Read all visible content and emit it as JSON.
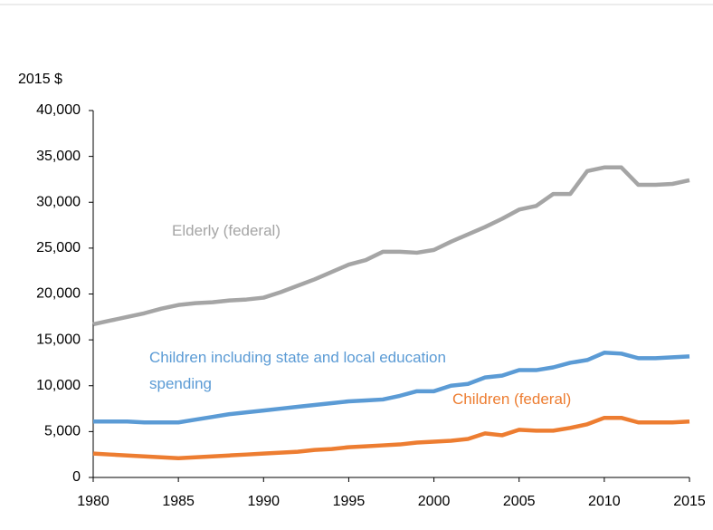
{
  "chart_data": {
    "type": "line",
    "y_label": "2015 $",
    "x": [
      1980,
      1981,
      1982,
      1983,
      1984,
      1985,
      1986,
      1987,
      1988,
      1989,
      1990,
      1991,
      1992,
      1993,
      1994,
      1995,
      1996,
      1997,
      1998,
      1999,
      2000,
      2001,
      2002,
      2003,
      2004,
      2005,
      2006,
      2007,
      2008,
      2009,
      2010,
      2011,
      2012,
      2013,
      2014,
      2015
    ],
    "series": [
      {
        "name": "Elderly (federal)",
        "color": "#a5a5a5",
        "values": [
          16700,
          17100,
          17500,
          17900,
          18400,
          18800,
          19000,
          19100,
          19300,
          19400,
          19600,
          20200,
          20900,
          21600,
          22400,
          23200,
          23700,
          24600,
          24600,
          24500,
          24800,
          25700,
          26500,
          27300,
          28200,
          29200,
          29600,
          30900,
          30900,
          33400,
          33800,
          33800,
          31900,
          31900,
          32000,
          32400
        ]
      },
      {
        "name": "Children including state and local education spending",
        "color": "#5b9bd5",
        "values": [
          6100,
          6100,
          6100,
          6000,
          6000,
          6000,
          6300,
          6600,
          6900,
          7100,
          7300,
          7500,
          7700,
          7900,
          8100,
          8300,
          8400,
          8500,
          8900,
          9400,
          9400,
          10000,
          10200,
          10900,
          11100,
          11700,
          11700,
          12000,
          12500,
          12800,
          13600,
          13500,
          13000,
          13000,
          13100,
          13200
        ]
      },
      {
        "name": "Children (federal)",
        "color": "#ed7d31",
        "values": [
          2600,
          2500,
          2400,
          2300,
          2200,
          2100,
          2200,
          2300,
          2400,
          2500,
          2600,
          2700,
          2800,
          3000,
          3100,
          3300,
          3400,
          3500,
          3600,
          3800,
          3900,
          4000,
          4200,
          4800,
          4600,
          5200,
          5100,
          5100,
          5400,
          5800,
          6500,
          6500,
          6000,
          6000,
          6000,
          6100
        ]
      }
    ],
    "xlim": [
      1980,
      2015
    ],
    "xticks": [
      1980,
      1985,
      1990,
      1995,
      2000,
      2005,
      2010,
      2015
    ],
    "ylim": [
      0,
      40000
    ],
    "yticks": [
      0,
      {
        "value": 5000,
        "label": "5,000"
      },
      {
        "value": 10000,
        "label": "10,000"
      },
      {
        "value": 15000,
        "label": "15,000"
      },
      {
        "value": 20000,
        "label": "20,000"
      },
      {
        "value": 25000,
        "label": "25,000"
      },
      {
        "value": 30000,
        "label": "30,000"
      },
      {
        "value": 35000,
        "label": "35,000"
      },
      {
        "value": 40000,
        "label": "40,000"
      }
    ],
    "grid": false
  }
}
